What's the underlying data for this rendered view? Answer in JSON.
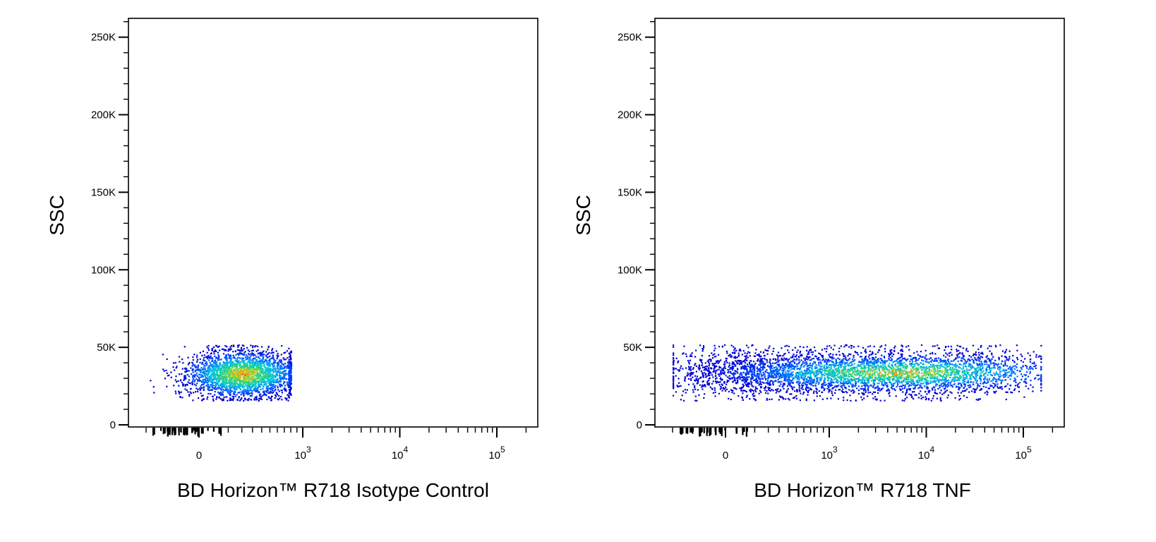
{
  "chart_data": [
    {
      "type": "scatter",
      "title": "",
      "xlabel": "BD Horizon™ R718 Isotype Control",
      "ylabel": "SSC",
      "x_scale": "biexponential",
      "xlim": [
        -400,
        200000
      ],
      "ylim": [
        0,
        262144
      ],
      "x_ticks": [
        {
          "value": 0,
          "base": "0",
          "exp": ""
        },
        {
          "value": 1000,
          "base": "10",
          "exp": "3"
        },
        {
          "value": 10000,
          "base": "10",
          "exp": "4"
        },
        {
          "value": 100000,
          "base": "10",
          "exp": "5"
        }
      ],
      "y_ticks": [
        {
          "value": 0,
          "label": "0"
        },
        {
          "value": 50000,
          "label": "50K"
        },
        {
          "value": 100000,
          "label": "100K"
        },
        {
          "value": 150000,
          "label": "150K"
        },
        {
          "value": 200000,
          "label": "200K"
        },
        {
          "value": 250000,
          "label": "250K"
        }
      ],
      "color_scale": "density (blue-cyan-green-yellow-red)",
      "populations": [
        {
          "x_range": [
            -280,
            800
          ],
          "x_center": 200,
          "y_range": [
            16000,
            52000
          ],
          "y_center": 33000,
          "count": 2600
        }
      ],
      "grid": false
    },
    {
      "type": "scatter",
      "title": "",
      "xlabel": "BD Horizon™ R718  TNF",
      "ylabel": "SSC",
      "x_scale": "biexponential",
      "xlim": [
        -400,
        200000
      ],
      "ylim": [
        0,
        262144
      ],
      "x_ticks": [
        {
          "value": 0,
          "base": "0",
          "exp": ""
        },
        {
          "value": 1000,
          "base": "10",
          "exp": "3"
        },
        {
          "value": 10000,
          "base": "10",
          "exp": "4"
        },
        {
          "value": 100000,
          "base": "10",
          "exp": "5"
        }
      ],
      "y_ticks": [
        {
          "value": 0,
          "label": "0"
        },
        {
          "value": 50000,
          "label": "50K"
        },
        {
          "value": 100000,
          "label": "100K"
        },
        {
          "value": 150000,
          "label": "150K"
        },
        {
          "value": 200000,
          "label": "200K"
        },
        {
          "value": 250000,
          "label": "250K"
        }
      ],
      "color_scale": "density (blue-cyan-green-yellow-red)",
      "populations": [
        {
          "x_range": [
            -300,
            150000
          ],
          "x_center": 5000,
          "y_range": [
            16000,
            52000
          ],
          "y_center": 34000,
          "count": 4200
        }
      ],
      "grid": false
    }
  ]
}
